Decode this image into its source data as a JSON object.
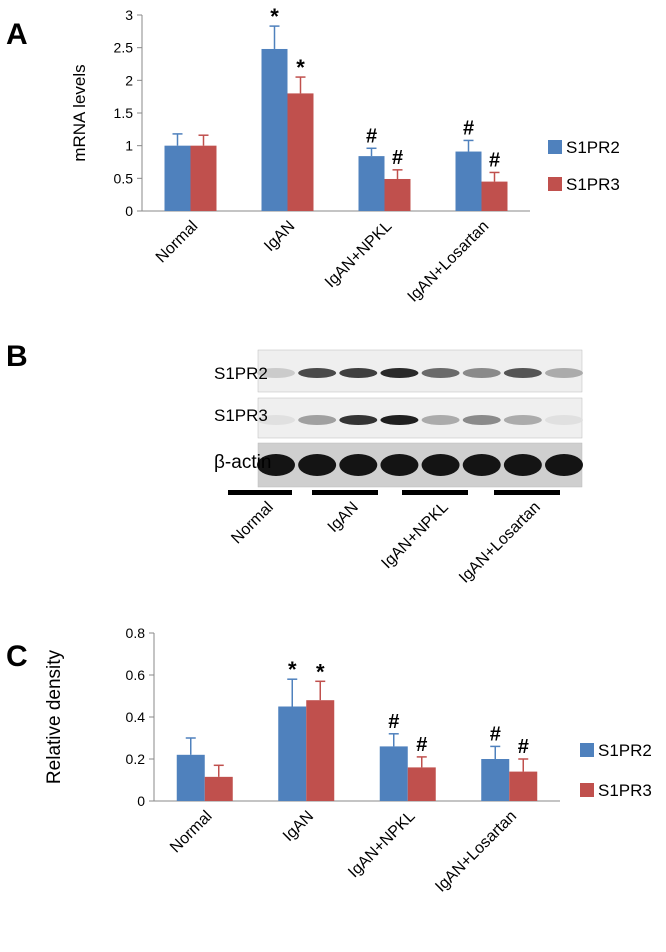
{
  "panels": {
    "a": {
      "letter": "A"
    },
    "b": {
      "letter": "B"
    },
    "c": {
      "letter": "C"
    }
  },
  "colors": {
    "s1pr2": "#4F81BD",
    "s1pr3": "#C0504D"
  },
  "chart_data": [
    {
      "type": "bar",
      "panel": "A",
      "title": "",
      "xlabel": "",
      "ylabel": "mRNA levels",
      "ylim": [
        0,
        3
      ],
      "yticks": [
        "0",
        "0.5",
        "1",
        "1.5",
        "2",
        "2.5",
        "3"
      ],
      "ytick_values": [
        0,
        0.5,
        1,
        1.5,
        2,
        2.5,
        3
      ],
      "categories": [
        "Normal",
        "IgAN",
        "IgAN+NPKL",
        "IgAN+Losartan"
      ],
      "series": [
        {
          "name": "S1PR2",
          "values": [
            1.0,
            2.48,
            0.84,
            0.91
          ],
          "errors": [
            0.18,
            0.35,
            0.12,
            0.17
          ],
          "marks": [
            "",
            "*",
            "#",
            "#"
          ]
        },
        {
          "name": "S1PR3",
          "values": [
            1.0,
            1.8,
            0.49,
            0.45
          ],
          "errors": [
            0.16,
            0.25,
            0.14,
            0.14
          ],
          "marks": [
            "",
            "*",
            "#",
            "#"
          ]
        }
      ],
      "legend": "right"
    },
    {
      "type": "bar",
      "panel": "C",
      "title": "",
      "xlabel": "",
      "ylabel": "Relative density",
      "ylim": [
        0,
        0.8
      ],
      "yticks": [
        "0",
        "0.2",
        "0.4",
        "0.6",
        "0.8"
      ],
      "ytick_values": [
        0,
        0.2,
        0.4,
        0.6,
        0.8
      ],
      "categories": [
        "Normal",
        "IgAN",
        "IgAN+NPKL",
        "IgAN+Losartan"
      ],
      "series": [
        {
          "name": "S1PR2",
          "values": [
            0.22,
            0.45,
            0.26,
            0.2
          ],
          "errors": [
            0.08,
            0.13,
            0.06,
            0.06
          ],
          "marks": [
            "",
            "*",
            "#",
            "#"
          ]
        },
        {
          "name": "S1PR3",
          "values": [
            0.115,
            0.48,
            0.16,
            0.14
          ],
          "errors": [
            0.055,
            0.09,
            0.05,
            0.06
          ],
          "marks": [
            "",
            "*",
            "#",
            "#"
          ]
        }
      ],
      "legend": "right"
    }
  ],
  "blot": {
    "rows": [
      {
        "label": "S1PR2",
        "intensities": [
          0.15,
          0.75,
          0.8,
          0.9,
          0.6,
          0.45,
          0.7,
          0.3
        ]
      },
      {
        "label": "S1PR3",
        "intensities": [
          0.05,
          0.35,
          0.85,
          0.95,
          0.3,
          0.45,
          0.3,
          0.05
        ]
      },
      {
        "label": "β-actin",
        "intensities": [
          1,
          1,
          1,
          1,
          1,
          1,
          1,
          1
        ]
      }
    ],
    "groups": [
      "Normal",
      "IgAN",
      "IgAN+NPKL",
      "IgAN+Losartan"
    ]
  }
}
